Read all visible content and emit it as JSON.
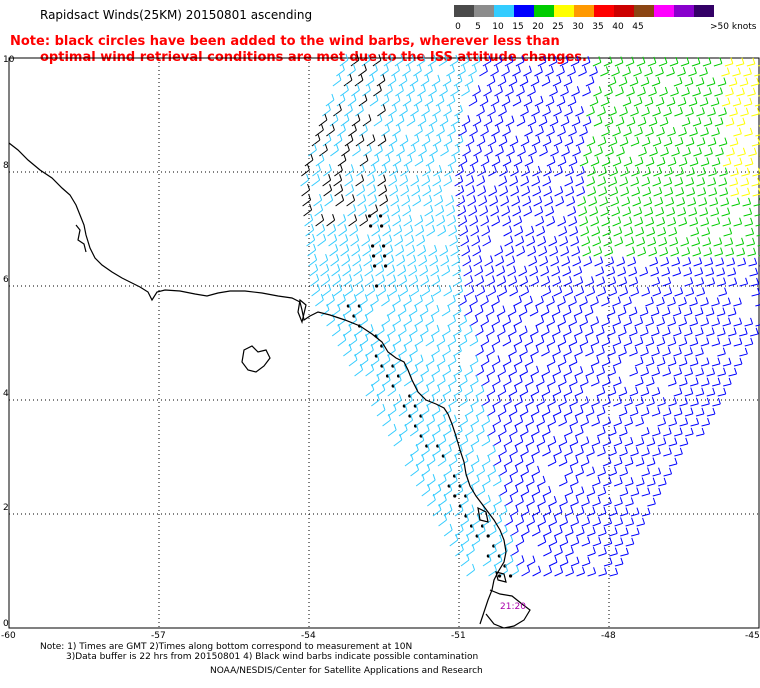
{
  "header": {
    "title": "Rapidsact Winds(25KM) 20150801 ascending",
    "note_line1": "Note: black circles have been added to the wind barbs, wherever less than",
    "note_line2": "optimal wind retrieval conditions are met due to the ISS attitude changes."
  },
  "legend": {
    "unit_label": ">50 knots",
    "bins": [
      {
        "label": "0",
        "color": "#4a4a4a"
      },
      {
        "label": "5",
        "color": "#8c8c8c"
      },
      {
        "label": "10",
        "color": "#33ccff"
      },
      {
        "label": "15",
        "color": "#0000ff"
      },
      {
        "label": "20",
        "color": "#00cc00"
      },
      {
        "label": "25",
        "color": "#ffff00"
      },
      {
        "label": "30",
        "color": "#ff9900"
      },
      {
        "label": "35",
        "color": "#ff0000"
      },
      {
        "label": "40",
        "color": "#cc0000"
      },
      {
        "label": "45",
        "color": "#8b4513"
      },
      {
        "label": "",
        "color": "#ff00ff"
      },
      {
        "label": "",
        "color": "#8800cc"
      },
      {
        "label": "",
        "color": "#330066"
      }
    ]
  },
  "axes": {
    "lon_ticks": [
      "-60",
      "-57",
      "-54",
      "-51",
      "-48",
      "-45"
    ],
    "lat_ticks": [
      "0",
      "2",
      "4",
      "6",
      "8",
      "10"
    ]
  },
  "time_label": "21:20",
  "footer": {
    "line1": "Note: 1) Times are GMT 2)Times along bottom correspond to measurement at 10N",
    "line2": "3)Data buffer is 22 hrs from 20150801 4) Black wind barbs indicate possible contamination",
    "line3": "NOAA/NESDIS/Center for Satellite Applications and Research"
  },
  "colors": {
    "cyan_barb": "#33ccff",
    "blue_barb": "#0000ff",
    "green_barb": "#00cc00",
    "yellow_barb": "#ffff00",
    "contaminated": "#000000",
    "coastline": "#000000",
    "time_label": "#aa00aa"
  }
}
